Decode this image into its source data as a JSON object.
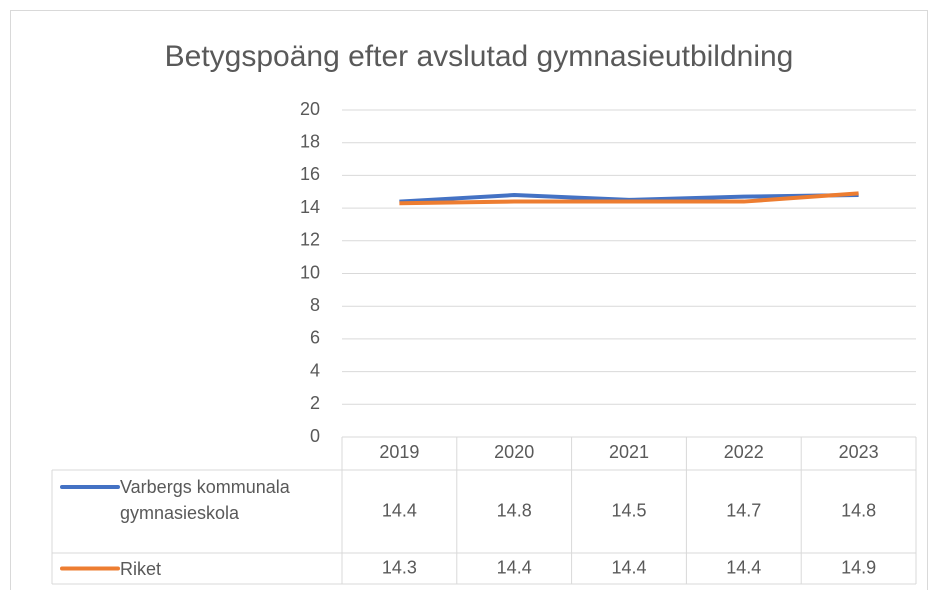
{
  "chart_data": {
    "type": "line",
    "title": "Betygspoäng efter avslutad gymnasieutbildning",
    "categories": [
      "2019",
      "2020",
      "2021",
      "2022",
      "2023"
    ],
    "series": [
      {
        "name": "Varbergs kommunala gymnasieskola",
        "color": "#4472c4",
        "values": [
          14.4,
          14.8,
          14.5,
          14.7,
          14.8
        ]
      },
      {
        "name": "Riket",
        "color": "#ed7d31",
        "values": [
          14.3,
          14.4,
          14.4,
          14.4,
          14.9
        ]
      }
    ],
    "ylim": [
      0,
      20
    ],
    "yticks": [
      0,
      2,
      4,
      6,
      8,
      10,
      12,
      14,
      16,
      18,
      20
    ],
    "grid": true
  }
}
